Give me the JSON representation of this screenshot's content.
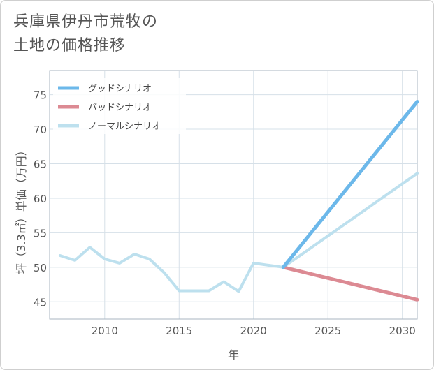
{
  "title_line1": "兵庫県伊丹市荒牧の",
  "title_line2": "土地の価格推移",
  "chart_data": {
    "type": "line",
    "title": "兵庫県伊丹市荒牧の土地の価格推移",
    "xlabel": "年",
    "ylabel": "坪（3.3㎡）単価（万円）",
    "xlim": [
      2006.3,
      2031
    ],
    "ylim": [
      42.5,
      78.5
    ],
    "x_ticks": [
      2010,
      2015,
      2020,
      2025,
      2030
    ],
    "y_ticks": [
      45,
      50,
      55,
      60,
      65,
      70,
      75
    ],
    "series": [
      {
        "name": "グッドシナリオ",
        "color": "#6cb8ea",
        "x": [
          2022,
          2031
        ],
        "y": [
          50.0,
          74.0
        ]
      },
      {
        "name": "バッドシナリオ",
        "color": "#dc8a93",
        "x": [
          2022,
          2031
        ],
        "y": [
          50.0,
          45.3
        ]
      },
      {
        "name": "ノーマルシナリオ",
        "color": "#bde0ee",
        "x": [
          2007,
          2008,
          2009,
          2010,
          2011,
          2012,
          2013,
          2014,
          2015,
          2016,
          2017,
          2018,
          2019,
          2020,
          2021,
          2022,
          2031
        ],
        "y": [
          51.7,
          51.0,
          52.9,
          51.2,
          50.6,
          51.9,
          51.2,
          49.2,
          46.6,
          46.6,
          46.6,
          47.9,
          46.5,
          50.6,
          50.3,
          50.0,
          63.6
        ]
      }
    ],
    "legend_position": "top-left"
  }
}
